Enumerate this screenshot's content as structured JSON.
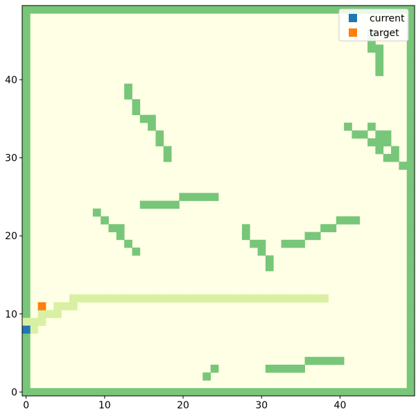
{
  "chart_data": {
    "type": "heatmap",
    "grid_size": [
      50,
      50
    ],
    "colors": {
      "background": "#ffffe5",
      "obstacle": "#78c679",
      "path": "#d9f0a3",
      "current": "#1f77b4",
      "target": "#ff7f0e"
    },
    "xticks": [
      0,
      10,
      20,
      30,
      40
    ],
    "yticks": [
      0,
      10,
      20,
      30,
      40
    ],
    "xlim": [
      -0.5,
      49.5
    ],
    "ylim": [
      -0.5,
      49.5
    ],
    "legend": {
      "placement": "top-right",
      "entries": [
        {
          "label": "current",
          "color": "#1f77b4"
        },
        {
          "label": "target",
          "color": "#ff7f0e"
        }
      ]
    },
    "current": [
      0,
      8
    ],
    "target": [
      2,
      11
    ],
    "path_cells": [
      [
        0,
        8
      ],
      [
        1,
        8
      ],
      [
        0,
        9
      ],
      [
        1,
        9
      ],
      [
        2,
        9
      ],
      [
        2,
        10
      ],
      [
        3,
        10
      ],
      [
        4,
        10
      ],
      [
        4,
        11
      ],
      [
        5,
        11
      ],
      [
        6,
        11
      ],
      [
        6,
        12
      ],
      [
        7,
        12
      ],
      [
        8,
        12
      ],
      [
        9,
        12
      ],
      [
        10,
        12
      ],
      [
        11,
        12
      ],
      [
        12,
        12
      ],
      [
        13,
        12
      ],
      [
        14,
        12
      ],
      [
        15,
        12
      ],
      [
        16,
        12
      ],
      [
        17,
        12
      ],
      [
        18,
        12
      ],
      [
        19,
        12
      ],
      [
        20,
        12
      ],
      [
        21,
        12
      ],
      [
        22,
        12
      ],
      [
        23,
        12
      ],
      [
        24,
        12
      ],
      [
        25,
        12
      ],
      [
        26,
        12
      ],
      [
        27,
        12
      ],
      [
        28,
        12
      ],
      [
        29,
        12
      ],
      [
        30,
        12
      ],
      [
        31,
        12
      ],
      [
        32,
        12
      ],
      [
        33,
        12
      ],
      [
        34,
        12
      ],
      [
        35,
        12
      ],
      [
        36,
        12
      ],
      [
        37,
        12
      ],
      [
        38,
        12
      ]
    ],
    "obstacle_cells": [
      [
        44,
        46
      ],
      [
        44,
        45
      ],
      [
        44,
        44
      ],
      [
        45,
        44
      ],
      [
        45,
        43
      ],
      [
        45,
        42
      ],
      [
        45,
        41
      ],
      [
        13,
        39
      ],
      [
        13,
        38
      ],
      [
        14,
        37
      ],
      [
        14,
        36
      ],
      [
        15,
        35
      ],
      [
        16,
        35
      ],
      [
        16,
        34
      ],
      [
        17,
        33
      ],
      [
        17,
        32
      ],
      [
        18,
        31
      ],
      [
        18,
        30
      ],
      [
        41,
        34
      ],
      [
        44,
        34
      ],
      [
        42,
        33
      ],
      [
        43,
        33
      ],
      [
        45,
        33
      ],
      [
        46,
        33
      ],
      [
        44,
        32
      ],
      [
        45,
        32
      ],
      [
        46,
        32
      ],
      [
        45,
        31
      ],
      [
        47,
        31
      ],
      [
        46,
        30
      ],
      [
        47,
        30
      ],
      [
        48,
        29
      ],
      [
        49,
        29
      ],
      [
        20,
        25
      ],
      [
        21,
        25
      ],
      [
        22,
        25
      ],
      [
        23,
        25
      ],
      [
        24,
        25
      ],
      [
        15,
        24
      ],
      [
        16,
        24
      ],
      [
        17,
        24
      ],
      [
        18,
        24
      ],
      [
        19,
        24
      ],
      [
        9,
        23
      ],
      [
        10,
        22
      ],
      [
        11,
        21
      ],
      [
        12,
        21
      ],
      [
        12,
        20
      ],
      [
        13,
        19
      ],
      [
        14,
        18
      ],
      [
        40,
        22
      ],
      [
        41,
        22
      ],
      [
        42,
        22
      ],
      [
        38,
        21
      ],
      [
        39,
        21
      ],
      [
        36,
        20
      ],
      [
        37,
        20
      ],
      [
        28,
        21
      ],
      [
        28,
        20
      ],
      [
        29,
        19
      ],
      [
        30,
        19
      ],
      [
        30,
        18
      ],
      [
        31,
        17
      ],
      [
        31,
        16
      ],
      [
        33,
        19
      ],
      [
        34,
        19
      ],
      [
        35,
        19
      ],
      [
        36,
        4
      ],
      [
        37,
        4
      ],
      [
        38,
        4
      ],
      [
        39,
        4
      ],
      [
        40,
        4
      ],
      [
        31,
        3
      ],
      [
        32,
        3
      ],
      [
        33,
        3
      ],
      [
        34,
        3
      ],
      [
        35,
        3
      ],
      [
        24,
        3
      ],
      [
        23,
        2
      ]
    ]
  }
}
